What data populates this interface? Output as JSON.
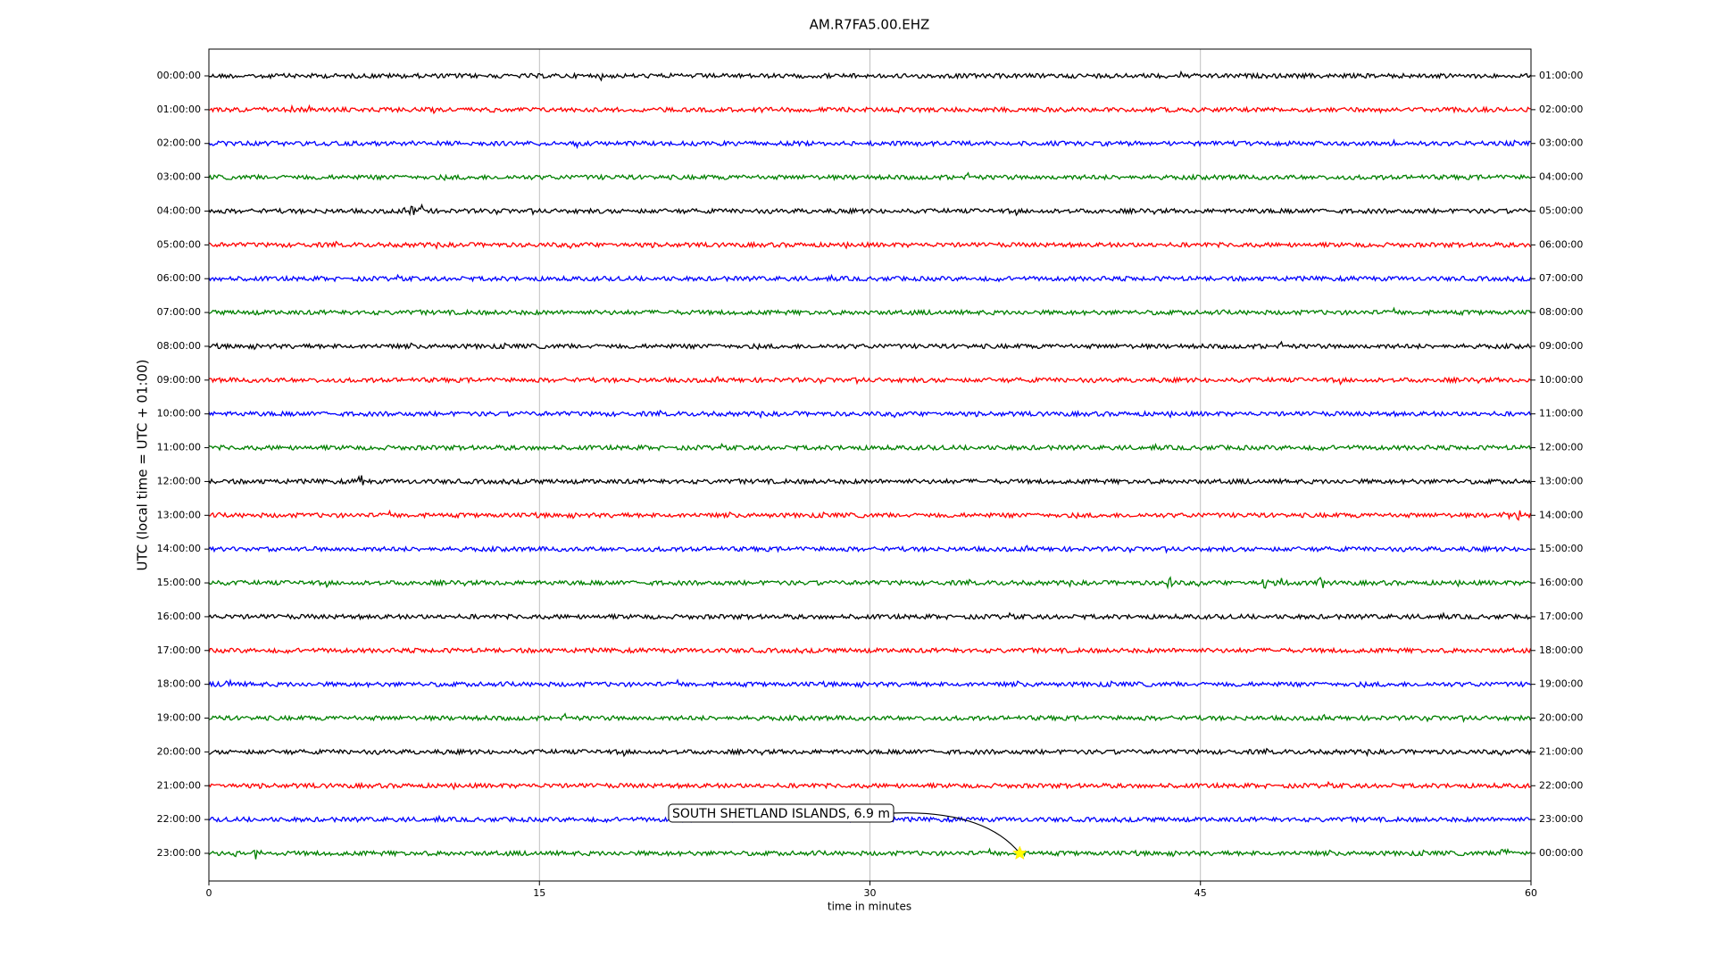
{
  "chart_data": {
    "type": "dayplot",
    "title": "AM.R7FA5.00.EHZ",
    "xlabel": "time in minutes",
    "ylabel": "UTC (local time = UTC + 01:00)",
    "xlim": [
      0,
      60
    ],
    "xticks": [
      0,
      15,
      30,
      45,
      60
    ],
    "grid": true,
    "colors": [
      "#000000",
      "#ff0000",
      "#0000ff",
      "#008000"
    ],
    "categories": [
      "00:00:00",
      "01:00:00",
      "02:00:00",
      "03:00:00",
      "04:00:00",
      "05:00:00",
      "06:00:00",
      "07:00:00",
      "08:00:00",
      "09:00:00",
      "10:00:00",
      "11:00:00",
      "12:00:00",
      "13:00:00",
      "14:00:00",
      "15:00:00",
      "16:00:00",
      "17:00:00",
      "18:00:00",
      "19:00:00",
      "20:00:00",
      "21:00:00",
      "22:00:00",
      "23:00:00"
    ],
    "right_labels": [
      "01:00:00",
      "02:00:00",
      "03:00:00",
      "04:00:00",
      "05:00:00",
      "06:00:00",
      "07:00:00",
      "08:00:00",
      "09:00:00",
      "10:00:00",
      "11:00:00",
      "12:00:00",
      "13:00:00",
      "14:00:00",
      "15:00:00",
      "16:00:00",
      "17:00:00",
      "18:00:00",
      "19:00:00",
      "20:00:00",
      "21:00:00",
      "22:00:00",
      "23:00:00",
      "00:00:00"
    ],
    "annotation": {
      "text": "SOUTH SHETLAND ISLANDS, 6.9 m",
      "x": 36.8,
      "category": "23:00:00"
    }
  }
}
